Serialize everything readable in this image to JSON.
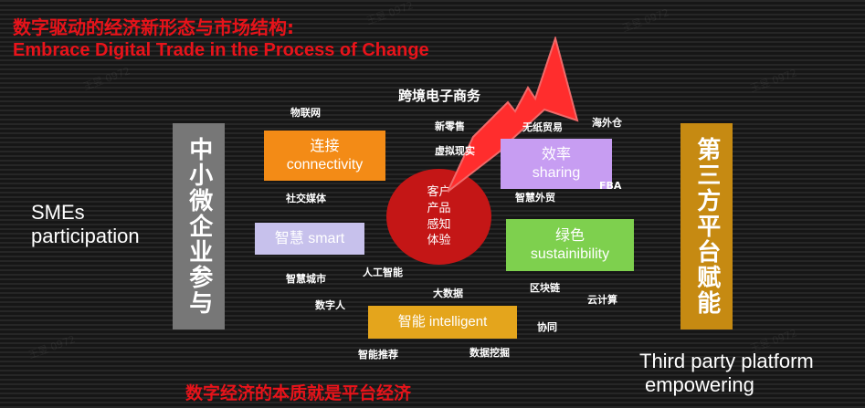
{
  "title": {
    "cn": "数字驱动的经济新形态与市场结构:",
    "en": "Embrace Digital Trade in the Process of Change"
  },
  "left": {
    "vertical": "中小微企业参与",
    "caption_line1": "SMEs",
    "caption_line2": "participation"
  },
  "right": {
    "vertical": "第三方平台赋能",
    "caption_line1": "Third party platform",
    "caption_line2": "empowering"
  },
  "boxes": {
    "connectivity": {
      "cn": "连接",
      "en": "connectivity"
    },
    "sharing": {
      "cn": "效率",
      "en": "sharing"
    },
    "smart": {
      "label": "智慧 smart"
    },
    "sustainability": {
      "cn": "绿色",
      "en": "sustainibility"
    },
    "intelligent": {
      "label": "智能 intelligent"
    }
  },
  "circle": {
    "line1": "客户",
    "line2": "产品",
    "line3": "感知",
    "line4": "体验"
  },
  "keywords": {
    "cross_border": "跨境电子商务",
    "iot": "物联网",
    "new_retail": "新零售",
    "virtual_reality": "虚拟现实",
    "paperless_trade": "无纸贸易",
    "overseas_warehouse": "海外仓",
    "social_media": "社交媒体",
    "smart_trade": "智慧外贸",
    "fba": "FBA",
    "smart_city": "智慧城市",
    "ai": "人工智能",
    "digital_human": "数字人",
    "big_data": "大数据",
    "blockchain": "区块链",
    "cloud_computing": "云计算",
    "collaboration": "协同",
    "smart_recommend": "智能推荐",
    "data_mining": "数据挖掘"
  },
  "bottom_text": "数字经济的本质就是平台经济",
  "watermark": "王昱 0972",
  "colors": {
    "red": "#e8131a",
    "orange": "#f38b16",
    "violet": "#c79df2",
    "green": "#7ed04e",
    "lavender": "#c7c1ec",
    "gold": "#e4a51c",
    "gray_bar": "#777777",
    "gold_bar": "#c68a12",
    "circle": "#c41616"
  }
}
